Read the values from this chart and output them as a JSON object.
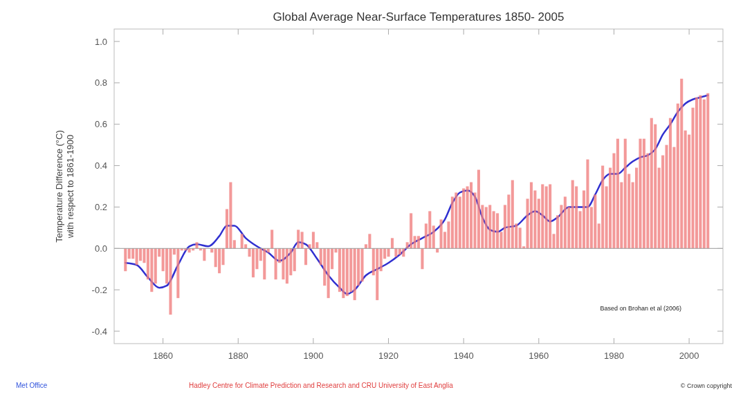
{
  "chart_data": {
    "type": "bar",
    "title": "Global Average Near-Surface Temperatures 1850- 2005",
    "ylabel": "Temperature Difference (°C)\nwith respect to 1861-1900",
    "x": [
      1850,
      1851,
      1852,
      1853,
      1854,
      1855,
      1856,
      1857,
      1858,
      1859,
      1860,
      1861,
      1862,
      1863,
      1864,
      1865,
      1866,
      1867,
      1868,
      1869,
      1870,
      1871,
      1872,
      1873,
      1874,
      1875,
      1876,
      1877,
      1878,
      1879,
      1880,
      1881,
      1882,
      1883,
      1884,
      1885,
      1886,
      1887,
      1888,
      1889,
      1890,
      1891,
      1892,
      1893,
      1894,
      1895,
      1896,
      1897,
      1898,
      1899,
      1900,
      1901,
      1902,
      1903,
      1904,
      1905,
      1906,
      1907,
      1908,
      1909,
      1910,
      1911,
      1912,
      1913,
      1914,
      1915,
      1916,
      1917,
      1918,
      1919,
      1920,
      1921,
      1922,
      1923,
      1924,
      1925,
      1926,
      1927,
      1928,
      1929,
      1930,
      1931,
      1932,
      1933,
      1934,
      1935,
      1936,
      1937,
      1938,
      1939,
      1940,
      1941,
      1942,
      1943,
      1944,
      1945,
      1946,
      1947,
      1948,
      1949,
      1950,
      1951,
      1952,
      1953,
      1954,
      1955,
      1956,
      1957,
      1958,
      1959,
      1960,
      1961,
      1962,
      1963,
      1964,
      1965,
      1966,
      1967,
      1968,
      1969,
      1970,
      1971,
      1972,
      1973,
      1974,
      1975,
      1976,
      1977,
      1978,
      1979,
      1980,
      1981,
      1982,
      1983,
      1984,
      1985,
      1986,
      1987,
      1988,
      1989,
      1990,
      1991,
      1992,
      1993,
      1994,
      1995,
      1996,
      1997,
      1998,
      1999,
      2000,
      2001,
      2002,
      2003,
      2004,
      2005
    ],
    "series": [
      {
        "color": "#f08080",
        "values": [
          -0.11,
          -0.05,
          -0.05,
          -0.08,
          -0.06,
          -0.07,
          -0.15,
          -0.21,
          -0.17,
          -0.04,
          -0.11,
          -0.17,
          -0.32,
          -0.03,
          -0.24,
          -0.01,
          -0.01,
          -0.02,
          -0.01,
          0.03,
          -0.01,
          -0.06,
          0.0,
          -0.02,
          -0.09,
          -0.12,
          -0.08,
          0.19,
          0.32,
          0.04,
          0.0,
          0.07,
          0.02,
          -0.04,
          -0.14,
          -0.1,
          -0.06,
          -0.15,
          -0.02,
          0.09,
          -0.15,
          -0.07,
          -0.15,
          -0.17,
          -0.13,
          -0.11,
          0.09,
          0.08,
          -0.08,
          0.02,
          0.08,
          0.03,
          -0.08,
          -0.18,
          -0.24,
          -0.1,
          -0.02,
          -0.21,
          -0.24,
          -0.23,
          -0.21,
          -0.25,
          -0.18,
          -0.16,
          0.02,
          0.07,
          -0.13,
          -0.25,
          -0.11,
          -0.05,
          -0.04,
          0.05,
          -0.04,
          -0.03,
          -0.04,
          0.03,
          0.17,
          0.06,
          0.06,
          -0.1,
          0.12,
          0.18,
          0.11,
          -0.02,
          0.14,
          0.08,
          0.13,
          0.25,
          0.27,
          0.25,
          0.29,
          0.3,
          0.32,
          0.27,
          0.38,
          0.21,
          0.2,
          0.21,
          0.18,
          0.17,
          0.08,
          0.21,
          0.26,
          0.33,
          0.12,
          0.1,
          0.01,
          0.24,
          0.32,
          0.28,
          0.24,
          0.31,
          0.3,
          0.31,
          0.07,
          0.16,
          0.21,
          0.25,
          0.2,
          0.33,
          0.3,
          0.18,
          0.28,
          0.43,
          0.2,
          0.26,
          0.12,
          0.4,
          0.3,
          0.39,
          0.46,
          0.53,
          0.32,
          0.53,
          0.36,
          0.32,
          0.39,
          0.53,
          0.53,
          0.46,
          0.63,
          0.6,
          0.39,
          0.45,
          0.5,
          0.63,
          0.49,
          0.7,
          0.82,
          0.57,
          0.55,
          0.68,
          0.73,
          0.74,
          0.72,
          0.75
        ]
      },
      {
        "type": "line",
        "color": "#3030d0",
        "x": [
          1850,
          1853,
          1856,
          1859,
          1861,
          1864,
          1867,
          1869,
          1872,
          1875,
          1877,
          1879,
          1882,
          1885,
          1888,
          1891,
          1894,
          1896,
          1898,
          1901,
          1904,
          1907,
          1909,
          1911,
          1914,
          1917,
          1920,
          1923,
          1926,
          1929,
          1932,
          1935,
          1937,
          1939,
          1941,
          1943,
          1945,
          1947,
          1949,
          1951,
          1954,
          1957,
          1959,
          1961,
          1963,
          1965,
          1968,
          1971,
          1973,
          1975,
          1977,
          1979,
          1981,
          1983,
          1985,
          1987,
          1989,
          1991,
          1993,
          1995,
          1997,
          1999,
          2001,
          2003,
          2005
        ],
        "values": [
          -0.07,
          -0.08,
          -0.14,
          -0.19,
          -0.18,
          -0.08,
          0.01,
          0.02,
          0.01,
          0.06,
          0.11,
          0.11,
          0.05,
          0.01,
          -0.02,
          -0.06,
          -0.02,
          0.03,
          0.02,
          -0.05,
          -0.13,
          -0.19,
          -0.22,
          -0.2,
          -0.13,
          -0.1,
          -0.07,
          -0.03,
          0.02,
          0.05,
          0.08,
          0.14,
          0.22,
          0.27,
          0.28,
          0.25,
          0.15,
          0.09,
          0.08,
          0.1,
          0.11,
          0.16,
          0.18,
          0.16,
          0.13,
          0.15,
          0.2,
          0.2,
          0.2,
          0.26,
          0.33,
          0.36,
          0.36,
          0.39,
          0.42,
          0.44,
          0.45,
          0.48,
          0.55,
          0.6,
          0.66,
          0.7,
          0.72,
          0.73,
          0.74
        ]
      }
    ],
    "xlim": [
      1847,
      2009
    ],
    "xticks": [
      1860,
      1880,
      1900,
      1920,
      1940,
      1960,
      1980,
      2000
    ],
    "ylim": [
      -0.46,
      1.06
    ],
    "yticks": [
      {
        "value": -0.4,
        "label": "-0.4"
      },
      {
        "value": -0.2,
        "label": "-0.2"
      },
      {
        "value": 0,
        "label": "0.0"
      },
      {
        "value": 0.2,
        "label": "0.2"
      },
      {
        "value": 0.4,
        "label": "0.4"
      },
      {
        "value": 0.6,
        "label": "0.6"
      },
      {
        "value": 0.8,
        "label": "0.8"
      },
      {
        "value": 1,
        "label": "1.0"
      }
    ],
    "annotations": [
      "Based on Brohan et al (2006)",
      "Met Office",
      "Hadley Centre for Climate Prediction and Research and CRU University of East Anglia",
      "© Crown copyright"
    ]
  }
}
